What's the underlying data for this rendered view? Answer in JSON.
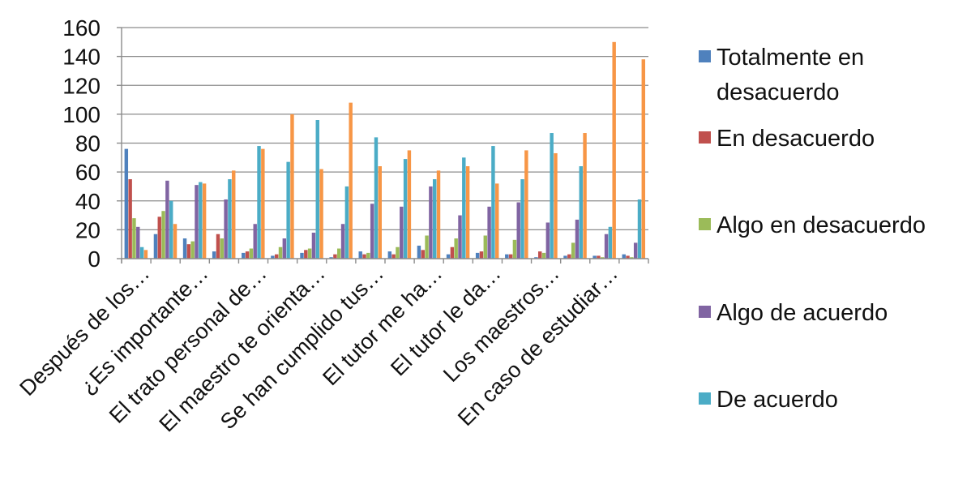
{
  "chart_data": {
    "type": "bar",
    "title": "",
    "xlabel": "",
    "ylabel": "",
    "ylim": [
      0,
      160
    ],
    "yticks": [
      0,
      20,
      40,
      60,
      80,
      100,
      120,
      140,
      160
    ],
    "grid": true,
    "legend_position": "right",
    "categories": [
      "Después de los…",
      "",
      "¿Es importante…",
      "",
      "El trato personal de…",
      "",
      "El maestro te orienta…",
      "",
      "Se han cumplido tus…",
      "",
      "El tutor me ha…",
      "",
      "El tutor le da…",
      "",
      "Los maestros…",
      "",
      "En caso de estudiar…",
      ""
    ],
    "series": [
      {
        "name": "Totalmente en desacuerdo",
        "color": "#4F81BD",
        "values": [
          76,
          17,
          14,
          5,
          4,
          2,
          4,
          1,
          5,
          5,
          9,
          3,
          4,
          3,
          1,
          2,
          2,
          3
        ]
      },
      {
        "name": "En desacuerdo",
        "color": "#C0504D",
        "values": [
          55,
          29,
          10,
          17,
          5,
          3,
          6,
          3,
          3,
          3,
          6,
          8,
          5,
          3,
          5,
          3,
          2,
          2
        ]
      },
      {
        "name": "Algo en desacuerdo",
        "color": "#9BBB59",
        "values": [
          28,
          33,
          12,
          14,
          7,
          8,
          7,
          7,
          4,
          8,
          16,
          14,
          16,
          13,
          4,
          11,
          1,
          1
        ]
      },
      {
        "name": "Algo de acuerdo",
        "color": "#8064A2",
        "values": [
          22,
          54,
          51,
          41,
          24,
          14,
          18,
          24,
          38,
          36,
          50,
          30,
          36,
          39,
          25,
          27,
          17,
          11
        ]
      },
      {
        "name": "De acuerdo",
        "color": "#4BACC6",
        "values": [
          8,
          40,
          53,
          55,
          78,
          67,
          96,
          50,
          84,
          69,
          55,
          70,
          78,
          55,
          87,
          64,
          22,
          41
        ]
      },
      {
        "name": "",
        "color": "#F79646",
        "values": [
          6,
          24,
          52,
          61,
          76,
          100,
          62,
          108,
          64,
          75,
          61,
          64,
          52,
          75,
          73,
          87,
          150,
          138
        ]
      }
    ]
  },
  "legend": [
    {
      "label": "Totalmente en desacuerdo",
      "color": "#4F81BD"
    },
    {
      "label": "En desacuerdo",
      "color": "#C0504D"
    },
    {
      "label": "Algo en desacuerdo",
      "color": "#9BBB59"
    },
    {
      "label": "Algo de acuerdo",
      "color": "#8064A2"
    },
    {
      "label": "De acuerdo",
      "color": "#4BACC6"
    }
  ]
}
